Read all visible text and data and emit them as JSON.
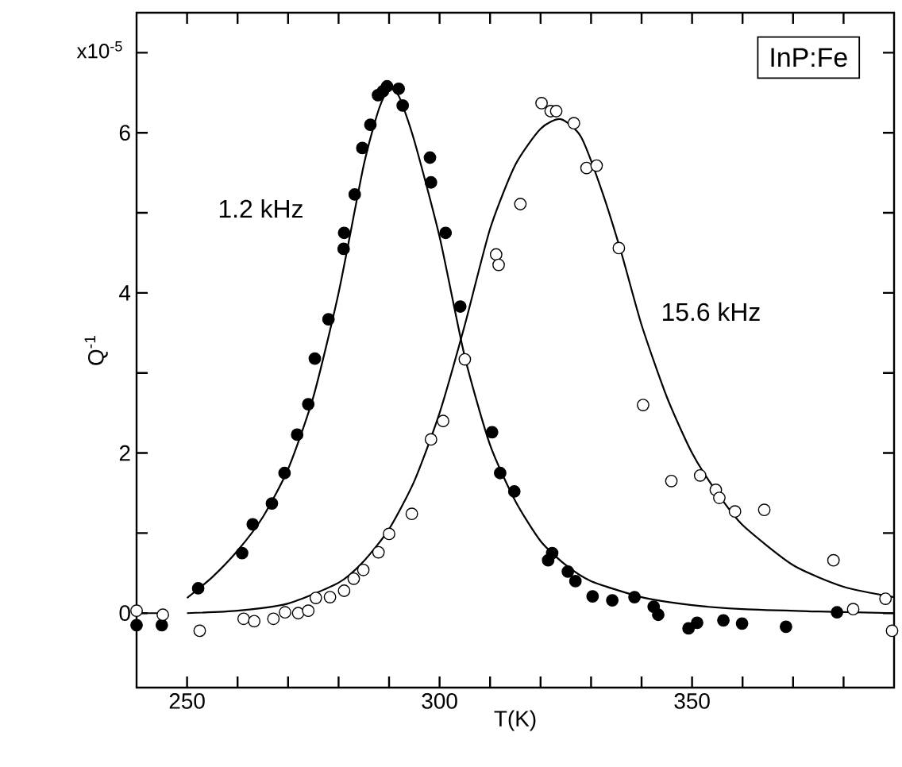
{
  "chart_data": {
    "type": "scatter",
    "title": "InP:Fe",
    "xlabel": "T(K)",
    "ylabel": "Q$^{-1}$",
    "annotations": [
      "x10$^{-5}$"
    ],
    "xlim": [
      240,
      390
    ],
    "ylim": [
      -0.93,
      7.5
    ],
    "xticks": [
      250,
      {
        "value": 260,
        "label": null
      },
      {
        "value": 270,
        "label": null
      },
      {
        "value": 280,
        "label": null
      },
      {
        "value": 290,
        "label": null
      },
      300,
      {
        "value": 310,
        "label": null
      },
      {
        "value": 320,
        "label": null
      },
      {
        "value": 330,
        "label": null
      },
      {
        "value": 340,
        "label": null
      },
      350,
      {
        "value": 360,
        "label": null
      },
      {
        "value": 370,
        "label": null
      },
      {
        "value": 380,
        "label": null
      }
    ],
    "yticks": [
      0,
      {
        "value": 1,
        "label": null
      },
      2,
      {
        "value": 3,
        "label": null
      },
      4,
      {
        "value": 5,
        "label": null
      },
      6,
      {
        "value": 7,
        "label": null
      }
    ],
    "grid": false,
    "series": [
      {
        "name": "1.2 kHz",
        "marker": "circle",
        "color": "#000000",
        "x": [
          240.0,
          245.0,
          252.2,
          260.9,
          263.0,
          266.8,
          269.3,
          271.8,
          274.0,
          275.3,
          278.0,
          281.0,
          281.1,
          283.2,
          284.7,
          286.3,
          287.8,
          288.8,
          289.6,
          291.9,
          292.7,
          298.1,
          298.3,
          301.2,
          304.1,
          310.4,
          312.0,
          314.8,
          321.5,
          322.3,
          325.4,
          326.9,
          330.3,
          334.2,
          338.6,
          342.4,
          343.3,
          349.3,
          351.0,
          356.2,
          359.9,
          368.6,
          378.7
        ],
        "values": [
          -0.15,
          -0.15,
          0.31,
          0.75,
          1.11,
          1.37,
          1.75,
          2.23,
          2.61,
          3.18,
          3.67,
          4.55,
          4.75,
          5.23,
          5.81,
          6.1,
          6.47,
          6.52,
          6.58,
          6.55,
          6.34,
          5.69,
          5.38,
          4.75,
          3.83,
          2.26,
          1.75,
          1.52,
          0.66,
          0.75,
          0.52,
          0.4,
          0.21,
          0.16,
          0.2,
          0.08,
          -0.02,
          -0.19,
          -0.12,
          -0.09,
          -0.13,
          -0.17,
          0.01
        ]
      },
      {
        "name": "15.6 kHz",
        "marker": "circle",
        "color": "#ffffff",
        "x": [
          240.0,
          245.2,
          252.5,
          261.2,
          263.3,
          267.1,
          269.4,
          272.0,
          274.0,
          275.5,
          278.3,
          281.1,
          283.0,
          284.9,
          287.9,
          290.0,
          294.5,
          298.3,
          300.7,
          305.0,
          311.2,
          311.7,
          316.0,
          320.2,
          322.0,
          323.1,
          326.6,
          329.1,
          331.1,
          335.5,
          340.3,
          345.9,
          351.6,
          354.7,
          355.4,
          358.5,
          364.3,
          378.0,
          381.9,
          388.3,
          389.6
        ],
        "values": [
          0.03,
          -0.02,
          -0.22,
          -0.07,
          -0.1,
          -0.07,
          0.01,
          0.0,
          0.03,
          0.19,
          0.2,
          0.28,
          0.43,
          0.54,
          0.76,
          0.99,
          1.24,
          2.17,
          2.4,
          3.17,
          4.48,
          4.35,
          5.11,
          6.37,
          6.27,
          6.27,
          6.12,
          5.56,
          5.59,
          4.56,
          2.6,
          1.65,
          1.72,
          1.54,
          1.44,
          1.27,
          1.29,
          0.66,
          0.05,
          0.18,
          -0.22
        ]
      },
      {
        "type": "line",
        "marker": "none",
        "color": "#000000",
        "line_style": "solid",
        "x": [
          250,
          255,
          260,
          265,
          270,
          275,
          280,
          285,
          288,
          290,
          292,
          295,
          300,
          305,
          310,
          315,
          320,
          325,
          330,
          340,
          350,
          360,
          375,
          390
        ],
        "values": [
          0.19,
          0.45,
          0.78,
          1.2,
          1.8,
          2.7,
          4.0,
          5.6,
          6.3,
          6.55,
          6.45,
          5.9,
          4.7,
          3.2,
          2.1,
          1.4,
          0.9,
          0.6,
          0.4,
          0.2,
          0.1,
          0.05,
          0.02,
          0.0
        ]
      },
      {
        "type": "line",
        "marker": "none",
        "color": "#000000",
        "line_style": "solid",
        "x": [
          240,
          246,
          248,
          250,
          260,
          270,
          280,
          285,
          290,
          295,
          300,
          305,
          310,
          315,
          320,
          324,
          328,
          332,
          336,
          340,
          345,
          350,
          355,
          360,
          370,
          380,
          390
        ],
        "values": [
          0.0,
          0.0,
          null,
          0.0,
          0.03,
          0.12,
          0.38,
          0.65,
          1.05,
          1.65,
          2.5,
          3.6,
          4.8,
          5.6,
          6.05,
          6.17,
          5.95,
          5.3,
          4.5,
          3.6,
          2.7,
          2.0,
          1.5,
          1.1,
          0.6,
          0.33,
          0.2
        ]
      }
    ]
  }
}
